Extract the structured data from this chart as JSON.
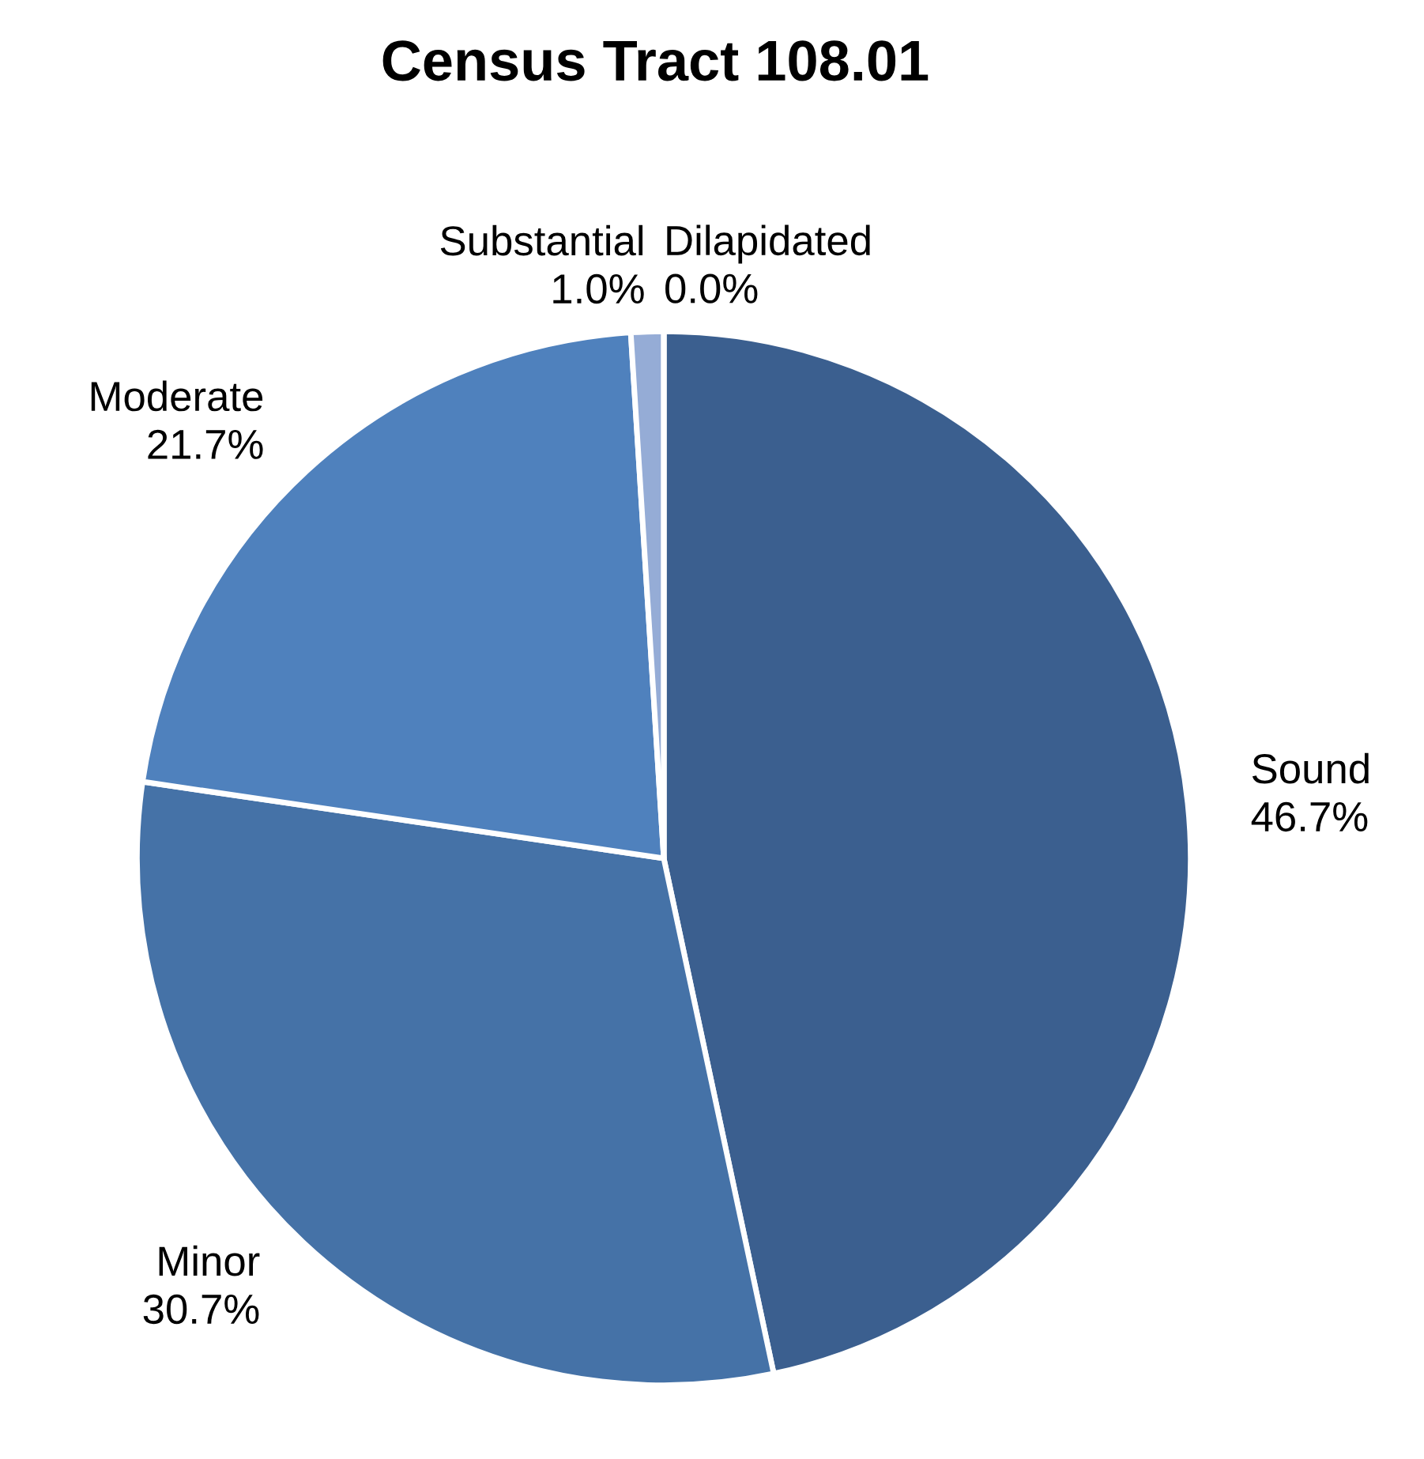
{
  "chart_data": {
    "type": "pie",
    "title": "Census Tract 108.01",
    "categories": [
      "Sound",
      "Minor",
      "Moderate",
      "Substantial",
      "Dilapidated"
    ],
    "values": [
      46.7,
      30.7,
      21.7,
      1.0,
      0.0
    ],
    "value_labels": [
      "46.7%",
      "30.7%",
      "21.7%",
      "1.0%",
      "0.0%"
    ],
    "colors": [
      "#3b5f8f",
      "#4572a7",
      "#4f81bd",
      "#95acd6",
      "#b9c8e3"
    ],
    "legend": false
  }
}
